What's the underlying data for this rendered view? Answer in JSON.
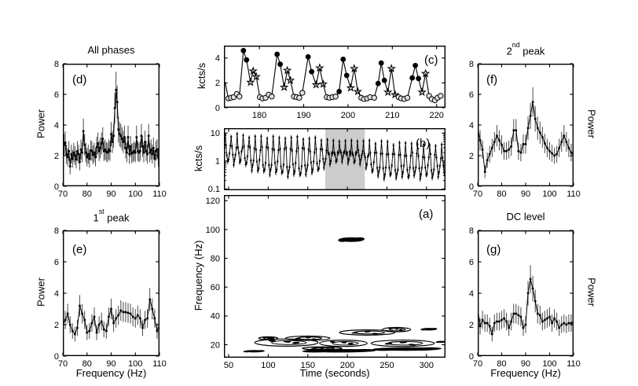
{
  "figure": {
    "background": "#ffffff",
    "ink_color": "#000000",
    "errorbar_color": "#4a4a4a",
    "highlight_color": "#cccccc",
    "open_marker_fill": "#e0e0e0"
  },
  "chart_data": [
    {
      "id": "a",
      "panel_label": "(a)",
      "type": "contour",
      "xlabel": "Time (seconds)",
      "ylabel": "Frequency (Hz)",
      "xlim": [
        44,
        324
      ],
      "ylim": [
        11,
        124
      ],
      "xticks": [
        50,
        100,
        150,
        200,
        250,
        300
      ],
      "yticks": [
        20,
        40,
        60,
        80,
        100,
        120
      ],
      "features": [
        {
          "t": 205,
          "f": 93,
          "tw": 16,
          "fh": 1.6,
          "style": "filled"
        },
        {
          "t": 82,
          "f": 15.5,
          "tw": 13,
          "fh": 0.8,
          "style": "filled"
        },
        {
          "t": 190,
          "f": 15.8,
          "tw": 45,
          "fh": 1.2,
          "style": "filled"
        },
        {
          "t": 123,
          "f": 21.5,
          "tw": 40,
          "fh": 2.5,
          "style": "contour"
        },
        {
          "t": 150,
          "f": 24.5,
          "tw": 28,
          "fh": 1.5,
          "style": "contour"
        },
        {
          "t": 195,
          "f": 21,
          "tw": 30,
          "fh": 2.2,
          "style": "contour"
        },
        {
          "t": 225,
          "f": 28.5,
          "tw": 35,
          "fh": 1.8,
          "style": "contour"
        },
        {
          "t": 262,
          "f": 30.5,
          "tw": 18,
          "fh": 1.5,
          "style": "contour"
        },
        {
          "t": 270,
          "f": 21,
          "tw": 40,
          "fh": 2.2,
          "style": "contour"
        },
        {
          "t": 275,
          "f": 17,
          "tw": 42,
          "fh": 1.2,
          "style": "filled"
        },
        {
          "t": 303,
          "f": 30.8,
          "tw": 10,
          "fh": 0.9,
          "style": "filled"
        },
        {
          "t": 100,
          "f": 24.5,
          "tw": 12,
          "fh": 1.0,
          "style": "contour"
        },
        {
          "t": 168,
          "f": 17.5,
          "tw": 25,
          "fh": 1.0,
          "style": "contour"
        },
        {
          "t": 318,
          "f": 22,
          "tw": 6,
          "fh": 0.6,
          "style": "filled"
        }
      ]
    },
    {
      "id": "b",
      "panel_label": "(b)",
      "type": "line",
      "ylabel": "kcts/s",
      "yscale": "log",
      "xlim": [
        44,
        324
      ],
      "ylim": [
        0.09,
        15
      ],
      "xticks": [
        50,
        100,
        150,
        200,
        250,
        300
      ],
      "xtick_labels_visible": false,
      "yticks": [
        0.1,
        1,
        10
      ],
      "ytick_minors": [
        0.2,
        0.3,
        0.4,
        0.5,
        0.6,
        0.7,
        0.8,
        0.9,
        2,
        3,
        4,
        5,
        6,
        7,
        8,
        9
      ],
      "highlight_span": [
        172,
        222
      ],
      "cycle_pattern": [
        [
          0,
          "peak",
          1.0
        ],
        [
          1.1,
          "peak",
          0.4
        ],
        [
          2.2,
          "min",
          2.0
        ],
        [
          3.3,
          "min",
          1.0
        ],
        [
          4.4,
          "min",
          1.3
        ],
        [
          5.5,
          "min",
          2.2
        ],
        [
          6.6,
          "peak",
          0.38
        ]
      ],
      "cycles": [
        [
          45.5,
          8.5,
          0.9
        ],
        [
          53.1,
          8.0,
          0.8
        ],
        [
          60.7,
          8.5,
          0.9
        ],
        [
          68.3,
          8.0,
          0.7
        ],
        [
          75.9,
          7.5,
          0.5
        ],
        [
          83.5,
          7.0,
          0.45
        ],
        [
          91.1,
          7.5,
          0.4
        ],
        [
          98.7,
          7.0,
          0.35
        ],
        [
          106.3,
          7.0,
          0.4
        ],
        [
          113.9,
          6.5,
          0.35
        ],
        [
          121.5,
          7.0,
          0.3
        ],
        [
          129.1,
          6.5,
          0.35
        ],
        [
          136.7,
          7.0,
          0.3
        ],
        [
          144.3,
          6.5,
          0.35
        ],
        [
          151.9,
          6.0,
          0.4
        ],
        [
          159.5,
          6.5,
          0.45
        ],
        [
          167.1,
          6.0,
          0.6
        ],
        [
          174.7,
          5.5,
          0.8
        ],
        [
          182.3,
          5.0,
          0.9
        ],
        [
          189.9,
          5.5,
          1.0
        ],
        [
          197.5,
          5.0,
          0.9
        ],
        [
          205.1,
          5.0,
          0.85
        ],
        [
          212.7,
          5.5,
          0.8
        ],
        [
          220.3,
          5.0,
          0.6
        ],
        [
          227.9,
          5.0,
          0.4
        ],
        [
          235.5,
          4.5,
          0.3
        ],
        [
          243.1,
          5.0,
          0.25
        ],
        [
          250.7,
          4.5,
          0.3
        ],
        [
          258.3,
          4.0,
          0.25
        ],
        [
          265.9,
          4.5,
          0.3
        ],
        [
          273.5,
          4.0,
          0.25
        ],
        [
          281.1,
          4.5,
          0.3
        ],
        [
          288.7,
          4.0,
          0.25
        ],
        [
          296.3,
          3.5,
          0.3
        ],
        [
          303.9,
          4.0,
          0.25
        ],
        [
          311.5,
          3.5,
          0.3
        ],
        [
          319.1,
          3.5,
          0.35
        ]
      ]
    },
    {
      "id": "c",
      "panel_label": "(c)",
      "type": "line",
      "ylabel": "kcts/s",
      "xlim": [
        172,
        222
      ],
      "ylim": [
        0,
        5
      ],
      "xticks": [
        180,
        190,
        200,
        210,
        220
      ],
      "yticks": [
        0,
        2,
        4
      ],
      "marker_legend": {
        "o": "open-circle",
        "f": "filled-circle",
        "s": "star",
        "n": "none"
      },
      "points": [
        [
          172.3,
          2.0,
          "n"
        ],
        [
          173.0,
          0.75,
          "o"
        ],
        [
          173.6,
          0.8,
          "o"
        ],
        [
          174.2,
          0.85,
          "o"
        ],
        [
          174.9,
          1.1,
          "o"
        ],
        [
          175.5,
          0.9,
          "o"
        ],
        [
          176.4,
          4.6,
          "f"
        ],
        [
          177.1,
          3.85,
          "f"
        ],
        [
          178.0,
          2.05,
          "s"
        ],
        [
          178.6,
          2.95,
          "s"
        ],
        [
          179.3,
          2.5,
          "s"
        ],
        [
          180.1,
          0.85,
          "o"
        ],
        [
          180.7,
          0.75,
          "o"
        ],
        [
          181.4,
          0.8,
          "o"
        ],
        [
          182.1,
          1.05,
          "o"
        ],
        [
          182.8,
          0.9,
          "o"
        ],
        [
          184.0,
          4.3,
          "f"
        ],
        [
          184.7,
          3.5,
          "f"
        ],
        [
          185.6,
          1.65,
          "s"
        ],
        [
          186.3,
          3.0,
          "s"
        ],
        [
          187.0,
          2.2,
          "s"
        ],
        [
          187.8,
          0.9,
          "o"
        ],
        [
          188.4,
          0.85,
          "o"
        ],
        [
          189.0,
          0.8,
          "o"
        ],
        [
          189.7,
          1.2,
          "o"
        ],
        [
          191.0,
          4.1,
          "f"
        ],
        [
          191.8,
          2.9,
          "f"
        ],
        [
          192.8,
          1.85,
          "s"
        ],
        [
          193.6,
          3.2,
          "s"
        ],
        [
          194.4,
          1.9,
          "s"
        ],
        [
          195.2,
          0.85,
          "o"
        ],
        [
          195.8,
          0.8,
          "o"
        ],
        [
          196.5,
          0.85,
          "o"
        ],
        [
          197.2,
          0.9,
          "o"
        ],
        [
          198.0,
          1.3,
          "f"
        ],
        [
          198.9,
          3.9,
          "f"
        ],
        [
          199.7,
          2.6,
          "f"
        ],
        [
          200.6,
          1.6,
          "s"
        ],
        [
          201.4,
          3.15,
          "s"
        ],
        [
          202.2,
          1.3,
          "s"
        ],
        [
          203.0,
          0.8,
          "o"
        ],
        [
          203.6,
          0.7,
          "o"
        ],
        [
          204.3,
          0.75,
          "o"
        ],
        [
          205.0,
          0.85,
          "o"
        ],
        [
          205.9,
          0.8,
          "o"
        ],
        [
          206.8,
          1.95,
          "f"
        ],
        [
          207.5,
          3.6,
          "f"
        ],
        [
          208.2,
          2.2,
          "f"
        ],
        [
          209.0,
          1.25,
          "s"
        ],
        [
          209.8,
          3.15,
          "s"
        ],
        [
          210.6,
          1.05,
          "s"
        ],
        [
          211.4,
          0.85,
          "o"
        ],
        [
          212.0,
          0.75,
          "o"
        ],
        [
          212.7,
          0.7,
          "o"
        ],
        [
          213.4,
          0.8,
          "o"
        ],
        [
          214.5,
          2.4,
          "f"
        ],
        [
          215.2,
          3.4,
          "f"
        ],
        [
          215.9,
          2.35,
          "f"
        ],
        [
          216.7,
          1.25,
          "s"
        ],
        [
          217.5,
          2.75,
          "s"
        ],
        [
          218.3,
          0.95,
          "o"
        ],
        [
          218.9,
          0.7,
          "o"
        ],
        [
          219.6,
          0.6,
          "o"
        ],
        [
          220.2,
          0.8,
          "o"
        ],
        [
          220.9,
          0.95,
          "o"
        ]
      ]
    },
    {
      "id": "d",
      "panel_label": "(d)",
      "title": "All phases",
      "ylabel": "Power",
      "ylabel_side": "left",
      "xlim": [
        70,
        110
      ],
      "ylim": [
        0,
        8
      ],
      "xticks": [
        70,
        80,
        90,
        100,
        110
      ],
      "yticks": [
        0,
        2,
        4,
        6,
        8
      ],
      "x_start": 70,
      "x_step": 0.5,
      "err": [
        0.35,
        0.13
      ],
      "values": [
        3.0,
        2.7,
        2.85,
        2.1,
        1.9,
        2.3,
        1.3,
        2.1,
        1.8,
        2.2,
        2.0,
        1.75,
        2.3,
        2.1,
        1.6,
        2.4,
        2.2,
        3.6,
        2.7,
        2.2,
        1.9,
        2.1,
        1.8,
        2.35,
        2.3,
        2.05,
        2.2,
        1.9,
        2.55,
        2.8,
        2.3,
        2.5,
        2.8,
        3.1,
        2.3,
        2.4,
        2.25,
        2.2,
        2.4,
        2.3,
        3.4,
        2.9,
        3.3,
        5.1,
        6.3,
        5.5,
        3.7,
        3.4,
        3.3,
        3.1,
        2.9,
        3.2,
        2.5,
        2.2,
        3.2,
        2.1,
        2.6,
        2.15,
        2.2,
        2.3,
        2.2,
        3.2,
        2.3,
        2.2,
        2.3,
        3.3,
        2.6,
        2.2,
        2.9,
        2.3,
        2.1,
        3.3,
        2.2,
        2.4,
        2.1,
        2.5,
        1.8,
        2.3,
        2.4,
        1.9,
        2.5
      ]
    },
    {
      "id": "e",
      "panel_label": "(e)",
      "title_num": "1",
      "title_sup": "st",
      "title_rest": " peak",
      "xlabel": "Frequency (Hz)",
      "ylabel": "Power",
      "ylabel_side": "left",
      "xlim": [
        70,
        110
      ],
      "ylim": [
        0,
        8
      ],
      "xticks": [
        70,
        80,
        90,
        100,
        110
      ],
      "yticks": [
        0,
        2,
        4,
        6,
        8
      ],
      "x_start": 70,
      "x_step": 1,
      "err": [
        0.3,
        0.12
      ],
      "values": [
        2.0,
        2.3,
        2.7,
        2.0,
        1.6,
        1.4,
        1.8,
        3.2,
        2.7,
        2.3,
        1.5,
        1.6,
        2.1,
        2.5,
        1.5,
        2.0,
        2.2,
        1.7,
        1.6,
        2.5,
        3.0,
        2.1,
        2.4,
        2.6,
        2.9,
        2.8,
        2.8,
        2.75,
        2.7,
        2.5,
        2.4,
        2.6,
        2.4,
        1.8,
        2.3,
        2.4,
        3.6,
        3.0,
        2.4,
        1.6,
        2.0
      ]
    },
    {
      "id": "f",
      "panel_label": "(f)",
      "title_num": "2",
      "title_sup": "nd",
      "title_rest": " peak",
      "ylabel": "Power",
      "ylabel_side": "right",
      "xlim": [
        70,
        110
      ],
      "ylim": [
        0,
        8
      ],
      "xticks": [
        70,
        80,
        90,
        100,
        110
      ],
      "yticks": [
        0,
        2,
        4,
        6,
        8
      ],
      "x_start": 70,
      "x_step": 1,
      "err": [
        0.3,
        0.12
      ],
      "values": [
        3.8,
        3.0,
        2.4,
        0.95,
        1.7,
        2.1,
        2.5,
        2.9,
        3.3,
        3.0,
        2.7,
        2.3,
        2.3,
        2.4,
        2.6,
        3.65,
        3.65,
        2.3,
        2.2,
        2.75,
        2.75,
        3.8,
        4.6,
        5.5,
        4.4,
        3.8,
        3.5,
        3.2,
        2.8,
        2.5,
        2.3,
        2.15,
        2.0,
        2.1,
        2.5,
        2.9,
        3.3,
        2.9,
        2.5,
        2.2,
        2.0
      ]
    },
    {
      "id": "g",
      "panel_label": "(g)",
      "title": "DC level",
      "xlabel": "Frequency (Hz)",
      "ylabel": "Power",
      "ylabel_side": "right",
      "xlim": [
        70,
        110
      ],
      "ylim": [
        0,
        8
      ],
      "xticks": [
        70,
        80,
        90,
        100,
        110
      ],
      "yticks": [
        0,
        2,
        4,
        6,
        8
      ],
      "x_start": 70,
      "x_step": 1,
      "err": [
        0.3,
        0.12
      ],
      "values": [
        3.0,
        1.9,
        2.3,
        2.1,
        2.1,
        1.9,
        1.4,
        2.1,
        2.2,
        2.2,
        2.3,
        2.4,
        2.2,
        1.8,
        2.2,
        2.7,
        2.7,
        2.6,
        2.5,
        1.8,
        2.0,
        4.0,
        4.9,
        4.3,
        3.5,
        2.7,
        2.6,
        2.2,
        2.3,
        2.4,
        2.5,
        2.1,
        2.4,
        2.2,
        1.8,
        2.0,
        2.1,
        2.0,
        2.1,
        2.1,
        2.2
      ]
    }
  ]
}
